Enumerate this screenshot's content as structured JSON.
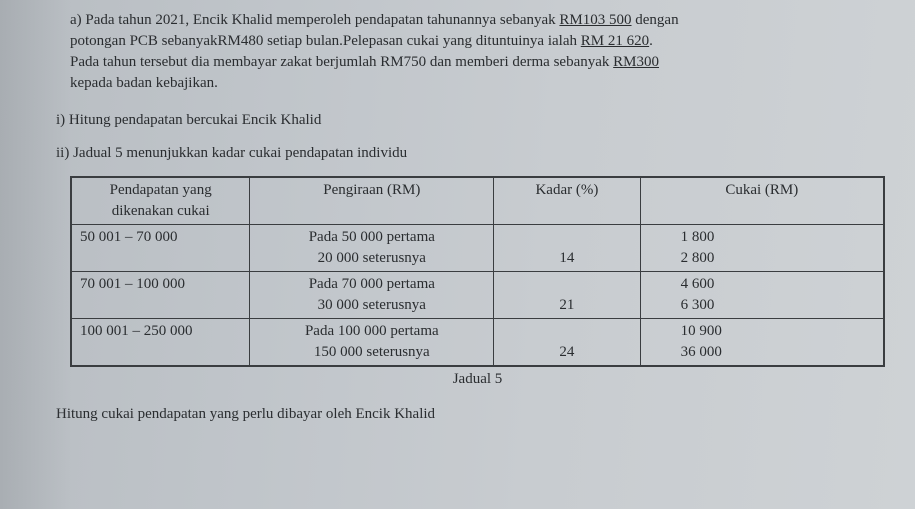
{
  "paragraph": {
    "line1_prefix": "a) Pada tahun 2021, Encik Khalid memperoleh pendapatan tahunannya sebanyak ",
    "line1_amount": "RM103 500",
    "line1_suffix": " dengan",
    "line2_prefix": "potongan PCB sebanyakRM480 setiap bulan.Pelepasan cukai yang dituntuinya ialah ",
    "line2_amount": "RM 21 620",
    "line2_end": ".",
    "line3_prefix": "Pada tahun tersebut dia membayar zakat berjumlah RM750 dan memberi derma sebanyak ",
    "line3_amount": "RM300",
    "line4": "kepada badan kebajikan."
  },
  "part_i": "i) Hitung pendapatan bercukai Encik Khalid",
  "jadual_intro": "ii) Jadual 5 menunjukkan kadar cukai pendapatan individu",
  "table": {
    "headers": {
      "c1": "Pendapatan yang dikenakan cukai",
      "c2": "Pengiraan (RM)",
      "c3": "Kadar (%)",
      "c4": "Cukai (RM)"
    },
    "rows": [
      {
        "range": "50 001 – 70 000",
        "calc1": "Pada 50 000 pertama",
        "calc2": "20 000 seterusnya",
        "rate": "14",
        "tax1": "1 800",
        "tax2": "2 800"
      },
      {
        "range": "70 001 – 100 000",
        "calc1": "Pada 70 000 pertama",
        "calc2": "30 000 seterusnya",
        "rate": "21",
        "tax1": "4 600",
        "tax2": "6 300"
      },
      {
        "range": "100 001 – 250 000",
        "calc1": "Pada 100 000 pertama",
        "calc2": "150 000 seterusnya",
        "rate": "24",
        "tax1": "10 900",
        "tax2": "36 000"
      }
    ],
    "caption": "Jadual 5"
  },
  "last_line": "Hitung cukai pendapatan yang perlu dibayar oleh Encik Khalid"
}
